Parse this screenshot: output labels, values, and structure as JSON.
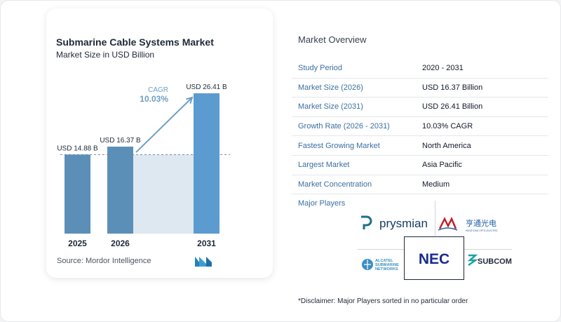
{
  "chart_data": {
    "type": "bar",
    "title": "Submarine Cable Systems Market",
    "subtitle": "Market Size in USD Billion",
    "categories": [
      "2025",
      "2026",
      "2031"
    ],
    "values": [
      14.88,
      16.37,
      26.41
    ],
    "value_labels": [
      "USD 14.88 B",
      "USD 16.37 B",
      "USD 26.41 B"
    ],
    "cagr_label": "CAGR",
    "cagr_value": "10.03%",
    "colors": {
      "bar": "#5b8fb8",
      "bar_last": "#5b9bcf",
      "shade": "#dde8f1",
      "arrow": "#6d9fc3"
    }
  },
  "source": "Source:  Mordor Intelligence",
  "overview": {
    "title": "Market Overview",
    "rows": [
      {
        "label": "Study Period",
        "value": "2020 - 2031"
      },
      {
        "label": "Market Size (2026)",
        "value": "USD 16.37 Billion"
      },
      {
        "label": "Market Size (2031)",
        "value": "USD 26.41 Billion"
      },
      {
        "label": "Growth Rate (2026 - 2031)",
        "value": "10.03% CAGR"
      },
      {
        "label": "Fastest Growing Market",
        "value": "North America"
      },
      {
        "label": "Largest Market",
        "value": "Asia Pacific"
      },
      {
        "label": "Market Concentration",
        "value": "Medium"
      }
    ]
  },
  "players": {
    "title": "Major Players",
    "logos": {
      "prysmian": "prysmian",
      "hengtong": "亨通光电",
      "hengtong_small": "HENGTONG OPTIC-ELECTRIC",
      "alcatel": [
        "ALCATEL",
        "SUBMARINE",
        "NETWORKS"
      ],
      "nec": "NEC",
      "subcom": "SUBCOM"
    }
  },
  "disclaimer": "*Disclaimer: Major Players sorted in no particular order"
}
